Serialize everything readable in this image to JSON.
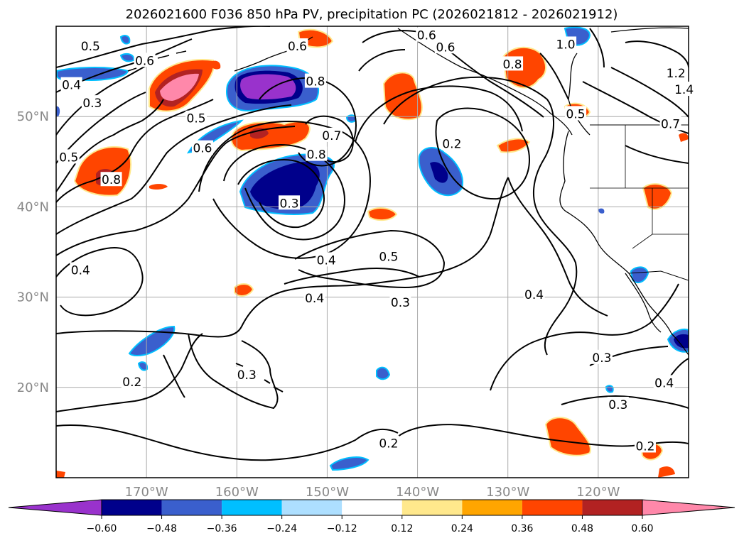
{
  "chart_data": {
    "type": "contour_map",
    "title": "2026021600 F036 850 hPa PV, precipitation PC (2026021812 - 2026021912)",
    "map": {
      "lon_range": [
        -180,
        -110
      ],
      "lat_range": [
        10,
        60
      ],
      "grid": true,
      "lon_ticks": [
        {
          "lon": -170,
          "label": "170°W"
        },
        {
          "lon": -160,
          "label": "160°W"
        },
        {
          "lon": -150,
          "label": "150°W"
        },
        {
          "lon": -140,
          "label": "140°W"
        },
        {
          "lon": -130,
          "label": "130°W"
        },
        {
          "lon": -120,
          "label": "120°W"
        }
      ],
      "lat_ticks": [
        {
          "lat": 20,
          "label": "20°N"
        },
        {
          "lat": 30,
          "label": "30°N"
        },
        {
          "lat": 40,
          "label": "40°N"
        },
        {
          "lat": 50,
          "label": "50°N"
        }
      ]
    },
    "colorbar": {
      "extend": "both",
      "under_color": "#9932CC",
      "over_color": "#FF88AA",
      "bins": [
        {
          "color": "#9932CC"
        },
        {
          "color": "#00008B"
        },
        {
          "color": "#3A5FCD"
        },
        {
          "color": "#00BFFF"
        },
        {
          "color": "#ADDFFF"
        },
        {
          "color": "#FFFFFF"
        },
        {
          "color": "#FFE88C"
        },
        {
          "color": "#FFA500"
        },
        {
          "color": "#FF4500"
        },
        {
          "color": "#B22222"
        },
        {
          "color": "#FF88AA"
        }
      ],
      "tick_labels": [
        "−0.60",
        "−0.48",
        "−0.36",
        "−0.24",
        "−0.12",
        "0.12",
        "0.24",
        "0.36",
        "0.48",
        "0.60"
      ]
    },
    "pv_contour_labels": [
      {
        "lon": -176.2,
        "lat": 57.8,
        "text": "0.5"
      },
      {
        "lon": -176.0,
        "lat": 51.5,
        "text": "0.3"
      },
      {
        "lon": -178.3,
        "lat": 53.5,
        "text": "0.4"
      },
      {
        "lon": -170.2,
        "lat": 56.2,
        "text": "0.6"
      },
      {
        "lon": -164.5,
        "lat": 49.8,
        "text": "0.5"
      },
      {
        "lon": -178.6,
        "lat": 45.5,
        "text": "0.5"
      },
      {
        "lon": -163.8,
        "lat": 46.5,
        "text": "0.6"
      },
      {
        "lon": -173.9,
        "lat": 43.0,
        "text": "0.8"
      },
      {
        "lon": -153.3,
        "lat": 57.8,
        "text": "0.6"
      },
      {
        "lon": -151.3,
        "lat": 53.9,
        "text": "0.8"
      },
      {
        "lon": -149.5,
        "lat": 47.9,
        "text": "0.7"
      },
      {
        "lon": -151.2,
        "lat": 45.8,
        "text": "0.8"
      },
      {
        "lon": -154.2,
        "lat": 40.4,
        "text": "0.3"
      },
      {
        "lon": -139.0,
        "lat": 59.0,
        "text": "0.6"
      },
      {
        "lon": -136.9,
        "lat": 57.7,
        "text": "0.6"
      },
      {
        "lon": -136.2,
        "lat": 47.0,
        "text": "0.2"
      },
      {
        "lon": -129.5,
        "lat": 55.8,
        "text": "0.8"
      },
      {
        "lon": -123.6,
        "lat": 58.0,
        "text": "1.0"
      },
      {
        "lon": -122.5,
        "lat": 50.3,
        "text": "0.5"
      },
      {
        "lon": -111.4,
        "lat": 54.8,
        "text": "1.2"
      },
      {
        "lon": -110.5,
        "lat": 53.0,
        "text": "1.4"
      },
      {
        "lon": -112.0,
        "lat": 49.2,
        "text": "0.7"
      },
      {
        "lon": -150.1,
        "lat": 34.1,
        "text": "0.4"
      },
      {
        "lon": -143.2,
        "lat": 34.5,
        "text": "0.5"
      },
      {
        "lon": -151.4,
        "lat": 29.9,
        "text": "0.4"
      },
      {
        "lon": -141.9,
        "lat": 29.4,
        "text": "0.3"
      },
      {
        "lon": -177.3,
        "lat": 33.0,
        "text": "0.4"
      },
      {
        "lon": -127.1,
        "lat": 30.3,
        "text": "0.4"
      },
      {
        "lon": -119.6,
        "lat": 23.3,
        "text": "0.3"
      },
      {
        "lon": -158.9,
        "lat": 21.4,
        "text": "0.3"
      },
      {
        "lon": -171.6,
        "lat": 20.6,
        "text": "0.2"
      },
      {
        "lon": -117.8,
        "lat": 18.1,
        "text": "0.3"
      },
      {
        "lon": -112.7,
        "lat": 20.5,
        "text": "0.4"
      },
      {
        "lon": -114.8,
        "lat": 13.5,
        "text": "0.2"
      },
      {
        "lon": -143.2,
        "lat": 13.8,
        "text": "0.2"
      }
    ]
  }
}
